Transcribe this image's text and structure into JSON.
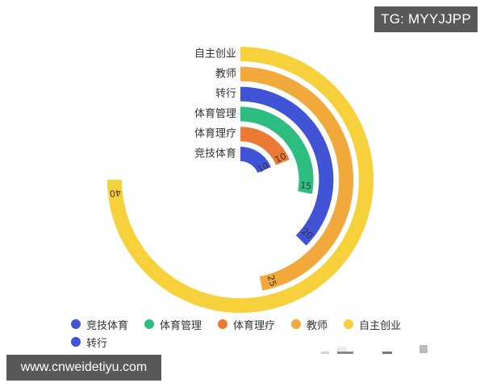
{
  "watermarks": {
    "top": "TG: MYYJJPP",
    "bottom": "www.cnweidetiyu.com"
  },
  "chart_data": {
    "type": "radial-bar",
    "title": "",
    "max_value": 40,
    "max_angle_deg": 270,
    "start_angle": "top (12 o'clock), clockwise",
    "categories": [
      "竞技体育",
      "体育理疗",
      "体育管理",
      "转行",
      "教师",
      "自主创业"
    ],
    "values": [
      10,
      10,
      15,
      20,
      25,
      40
    ],
    "colors": [
      "#4254d6",
      "#ed7a34",
      "#2dbd80",
      "#4254d6",
      "#f0a93a",
      "#f7d13c"
    ],
    "ring_order": "inner to outer",
    "legend": [
      {
        "label": "竞技体育",
        "color": "#4254d6"
      },
      {
        "label": "体育管理",
        "color": "#2dbd80"
      },
      {
        "label": "体育理疗",
        "color": "#ed7a34"
      },
      {
        "label": "教师",
        "color": "#f0a93a"
      },
      {
        "label": "自主创业",
        "color": "#f7d13c"
      },
      {
        "label": "转行",
        "color": "#4254d6"
      }
    ],
    "legend_position": "bottom"
  }
}
